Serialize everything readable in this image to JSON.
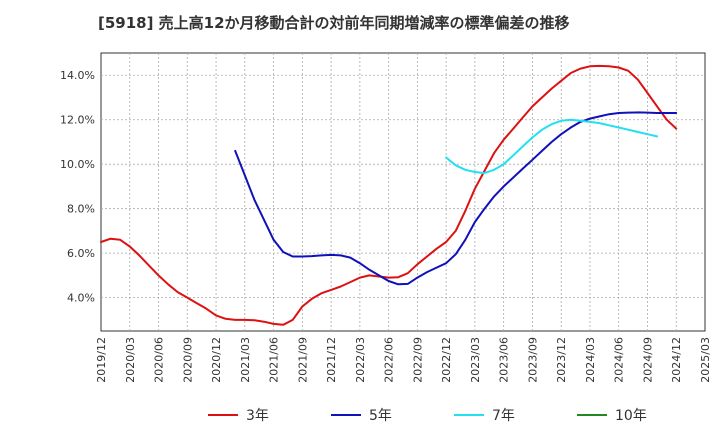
{
  "chart_data": {
    "type": "line",
    "title": "[5918]  売上高12か月移動合計の対前年同期増減率の標準偏差の推移",
    "xlabel": "",
    "ylabel": "",
    "x_ticks": [
      "2019/12",
      "2020/03",
      "2020/06",
      "2020/09",
      "2020/12",
      "2021/03",
      "2021/06",
      "2021/09",
      "2021/12",
      "2022/03",
      "2022/06",
      "2022/09",
      "2022/12",
      "2023/03",
      "2023/06",
      "2023/09",
      "2023/12",
      "2024/03",
      "2024/06",
      "2024/09",
      "2024/12",
      "2025/03"
    ],
    "y_ticks": [
      "4.0%",
      "6.0%",
      "8.0%",
      "10.0%",
      "12.0%",
      "14.0%"
    ],
    "ylim": [
      2.5,
      15.0
    ],
    "grid": true,
    "legend_position": "bottom",
    "series": [
      {
        "name": "3年",
        "color": "#dd1111",
        "start": "2019/12",
        "values": [
          6.5,
          6.65,
          6.6,
          6.3,
          5.9,
          5.45,
          5.0,
          4.6,
          4.25,
          4.0,
          3.75,
          3.5,
          3.2,
          3.05,
          3.0,
          3.0,
          2.98,
          2.92,
          2.82,
          2.78,
          3.0,
          3.6,
          3.95,
          4.2,
          4.35,
          4.5,
          4.7,
          4.9,
          5.0,
          4.95,
          4.9,
          4.92,
          5.1,
          5.5,
          5.85,
          6.2,
          6.5,
          7.0,
          7.9,
          8.9,
          9.7,
          10.5,
          11.1,
          11.6,
          12.1,
          12.6,
          13.0,
          13.4,
          13.75,
          14.1,
          14.3,
          14.4,
          14.42,
          14.4,
          14.35,
          14.2,
          13.8,
          13.2,
          12.6,
          12.0,
          11.6
        ]
      },
      {
        "name": "5年",
        "color": "#1111bb",
        "start": "2021/02",
        "values": [
          10.6,
          9.5,
          8.4,
          7.5,
          6.6,
          6.05,
          5.85,
          5.85,
          5.87,
          5.9,
          5.92,
          5.9,
          5.8,
          5.55,
          5.25,
          5.0,
          4.75,
          4.6,
          4.62,
          4.9,
          5.15,
          5.35,
          5.55,
          5.95,
          6.6,
          7.4,
          8.0,
          8.55,
          9.0,
          9.4,
          9.8,
          10.2,
          10.6,
          11.0,
          11.35,
          11.65,
          11.9,
          12.05,
          12.15,
          12.25,
          12.3,
          12.32,
          12.33,
          12.32,
          12.3,
          12.3,
          12.3
        ]
      },
      {
        "name": "7年",
        "color": "#22e0ee",
        "start": "2022/12",
        "values": [
          10.3,
          9.95,
          9.75,
          9.65,
          9.6,
          9.75,
          10.0,
          10.4,
          10.8,
          11.2,
          11.55,
          11.8,
          11.95,
          12.0,
          11.95,
          11.9,
          11.85,
          11.75,
          11.65,
          11.55,
          11.45,
          11.35,
          11.25
        ]
      },
      {
        "name": "10年",
        "color": "#228822",
        "start": "2019/12",
        "values": []
      }
    ]
  }
}
